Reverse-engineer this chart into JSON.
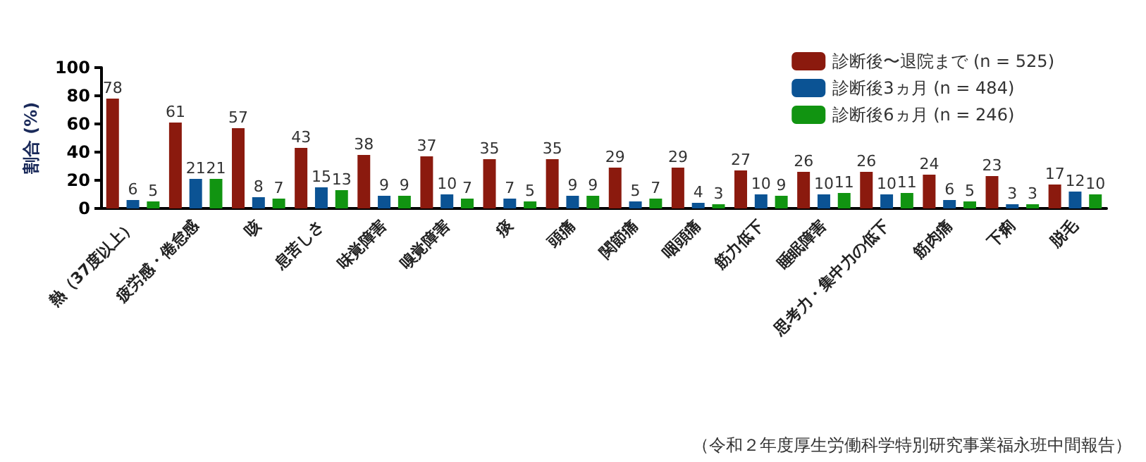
{
  "chart_data": {
    "type": "bar",
    "ylabel": "割合 (%)",
    "categories": [
      "熱（37度以上）",
      "疲労感・倦怠感",
      "咳",
      "息苦しさ",
      "味覚障害",
      "嗅覚障害",
      "痰",
      "頭痛",
      "関節痛",
      "咽頭痛",
      "筋力低下",
      "睡眠障害",
      "思考力・集中力の低下",
      "筋肉痛",
      "下痢",
      "脱毛"
    ],
    "series": [
      {
        "name": "診断後〜退院まで (n = 525)",
        "color": "#8b1a0e",
        "values": [
          78,
          61,
          57,
          43,
          38,
          37,
          35,
          35,
          29,
          29,
          27,
          26,
          26,
          24,
          23,
          17
        ]
      },
      {
        "name": "診断後3ヵ月 (n = 484)",
        "color": "#0b5394",
        "values": [
          6,
          21,
          8,
          15,
          9,
          10,
          7,
          9,
          5,
          4,
          10,
          10,
          10,
          6,
          3,
          12
        ]
      },
      {
        "name": "診断後6ヵ月 (n = 246)",
        "color": "#119411",
        "values": [
          5,
          21,
          7,
          13,
          9,
          7,
          5,
          9,
          7,
          3,
          9,
          11,
          11,
          5,
          3,
          10
        ]
      }
    ],
    "ylim": [
      0,
      100
    ],
    "yticks": [
      0,
      20,
      40,
      60,
      80,
      100
    ],
    "grid": false,
    "legend": "top right",
    "data_labels": true,
    "annotations": [
      "（令和２年度厚生労働科学特別研究事業福永班中間報告）"
    ]
  }
}
